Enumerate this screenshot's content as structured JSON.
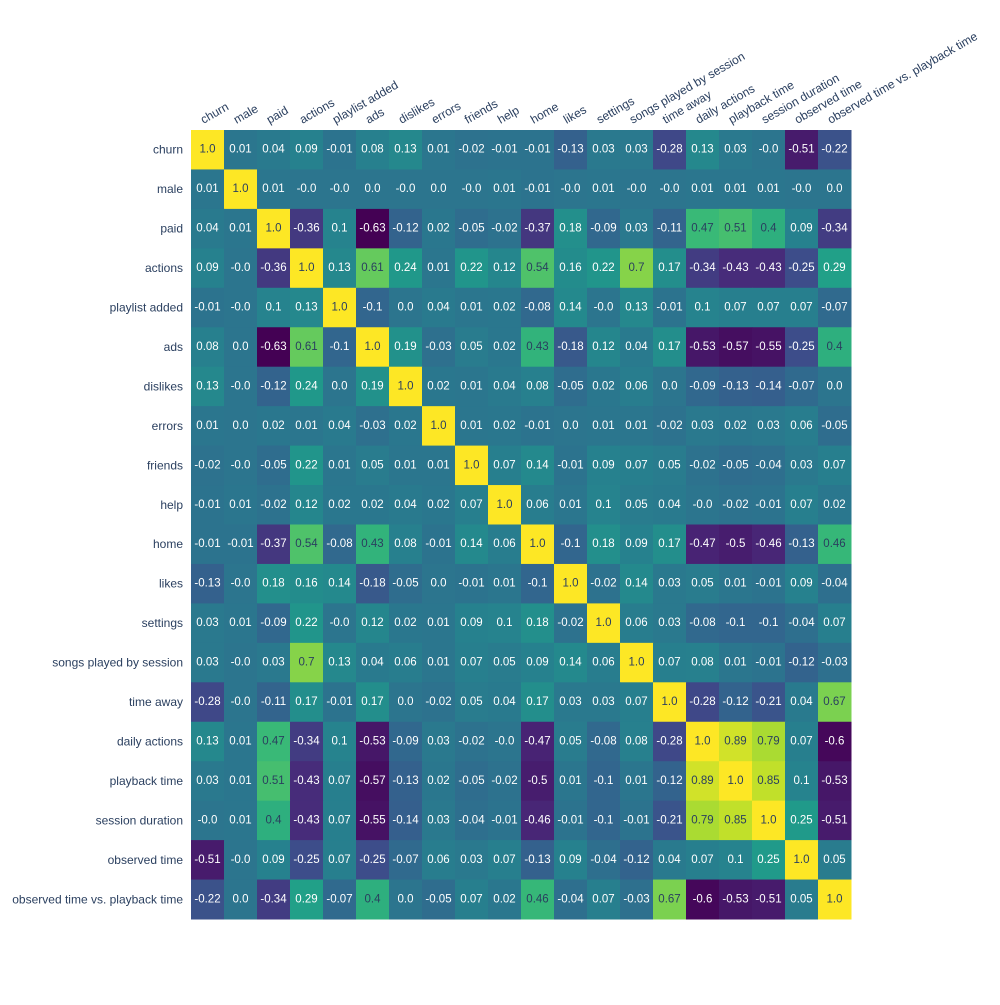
{
  "chart_data": {
    "type": "heatmap",
    "title": "",
    "xlabel": "",
    "ylabel": "",
    "colorscale": "viridis",
    "zmin": -0.63,
    "zmax": 1.0,
    "show_colorbar": false,
    "x_axis_side": "top",
    "categories": [
      "churn",
      "male",
      "paid",
      "actions",
      "playlist added",
      "ads",
      "dislikes",
      "errors",
      "friends",
      "help",
      "home",
      "likes",
      "settings",
      "songs played by session",
      "time away",
      "daily actions",
      "playback time",
      "session duration",
      "observed time",
      "observed time vs. playback time"
    ],
    "values": [
      [
        1.0,
        0.01,
        0.04,
        0.09,
        -0.01,
        0.08,
        0.13,
        0.01,
        -0.02,
        -0.01,
        -0.01,
        -0.13,
        0.03,
        0.03,
        -0.28,
        0.13,
        0.03,
        -0.0,
        -0.51,
        -0.22
      ],
      [
        0.01,
        1.0,
        0.01,
        -0.0,
        -0.0,
        0.0,
        -0.0,
        0.0,
        -0.0,
        0.01,
        -0.01,
        -0.0,
        0.01,
        -0.0,
        -0.0,
        0.01,
        0.01,
        0.01,
        -0.0,
        0.0
      ],
      [
        0.04,
        0.01,
        1.0,
        -0.36,
        0.1,
        -0.63,
        -0.12,
        0.02,
        -0.05,
        -0.02,
        -0.37,
        0.18,
        -0.09,
        0.03,
        -0.11,
        0.47,
        0.51,
        0.4,
        0.09,
        -0.34
      ],
      [
        0.09,
        -0.0,
        -0.36,
        1.0,
        0.13,
        0.61,
        0.24,
        0.01,
        0.22,
        0.12,
        0.54,
        0.16,
        0.22,
        0.7,
        0.17,
        -0.34,
        -0.43,
        -0.43,
        -0.25,
        0.29
      ],
      [
        -0.01,
        -0.0,
        0.1,
        0.13,
        1.0,
        -0.1,
        0.0,
        0.04,
        0.01,
        0.02,
        -0.08,
        0.14,
        -0.0,
        0.13,
        -0.01,
        0.1,
        0.07,
        0.07,
        0.07,
        -0.07
      ],
      [
        0.08,
        0.0,
        -0.63,
        0.61,
        -0.1,
        1.0,
        0.19,
        -0.03,
        0.05,
        0.02,
        0.43,
        -0.18,
        0.12,
        0.04,
        0.17,
        -0.53,
        -0.57,
        -0.55,
        -0.25,
        0.4
      ],
      [
        0.13,
        -0.0,
        -0.12,
        0.24,
        0.0,
        0.19,
        1.0,
        0.02,
        0.01,
        0.04,
        0.08,
        -0.05,
        0.02,
        0.06,
        0.0,
        -0.09,
        -0.13,
        -0.14,
        -0.07,
        0.0
      ],
      [
        0.01,
        0.0,
        0.02,
        0.01,
        0.04,
        -0.03,
        0.02,
        1.0,
        0.01,
        0.02,
        -0.01,
        0.0,
        0.01,
        0.01,
        -0.02,
        0.03,
        0.02,
        0.03,
        0.06,
        -0.05
      ],
      [
        -0.02,
        -0.0,
        -0.05,
        0.22,
        0.01,
        0.05,
        0.01,
        0.01,
        1.0,
        0.07,
        0.14,
        -0.01,
        0.09,
        0.07,
        0.05,
        -0.02,
        -0.05,
        -0.04,
        0.03,
        0.07
      ],
      [
        -0.01,
        0.01,
        -0.02,
        0.12,
        0.02,
        0.02,
        0.04,
        0.02,
        0.07,
        1.0,
        0.06,
        0.01,
        0.1,
        0.05,
        0.04,
        -0.0,
        -0.02,
        -0.01,
        0.07,
        0.02
      ],
      [
        -0.01,
        -0.01,
        -0.37,
        0.54,
        -0.08,
        0.43,
        0.08,
        -0.01,
        0.14,
        0.06,
        1.0,
        -0.1,
        0.18,
        0.09,
        0.17,
        -0.47,
        -0.5,
        -0.46,
        -0.13,
        0.46
      ],
      [
        -0.13,
        -0.0,
        0.18,
        0.16,
        0.14,
        -0.18,
        -0.05,
        0.0,
        -0.01,
        0.01,
        -0.1,
        1.0,
        -0.02,
        0.14,
        0.03,
        0.05,
        0.01,
        -0.01,
        0.09,
        -0.04
      ],
      [
        0.03,
        0.01,
        -0.09,
        0.22,
        -0.0,
        0.12,
        0.02,
        0.01,
        0.09,
        0.1,
        0.18,
        -0.02,
        1.0,
        0.06,
        0.03,
        -0.08,
        -0.1,
        -0.1,
        -0.04,
        0.07
      ],
      [
        0.03,
        -0.0,
        0.03,
        0.7,
        0.13,
        0.04,
        0.06,
        0.01,
        0.07,
        0.05,
        0.09,
        0.14,
        0.06,
        1.0,
        0.07,
        0.08,
        0.01,
        -0.01,
        -0.12,
        -0.03
      ],
      [
        -0.28,
        -0.0,
        -0.11,
        0.17,
        -0.01,
        0.17,
        0.0,
        -0.02,
        0.05,
        0.04,
        0.17,
        0.03,
        0.03,
        0.07,
        1.0,
        -0.28,
        -0.12,
        -0.21,
        0.04,
        0.67
      ],
      [
        0.13,
        0.01,
        0.47,
        -0.34,
        0.1,
        -0.53,
        -0.09,
        0.03,
        -0.02,
        -0.0,
        -0.47,
        0.05,
        -0.08,
        0.08,
        -0.28,
        1.0,
        0.89,
        0.79,
        0.07,
        -0.6
      ],
      [
        0.03,
        0.01,
        0.51,
        -0.43,
        0.07,
        -0.57,
        -0.13,
        0.02,
        -0.05,
        -0.02,
        -0.5,
        0.01,
        -0.1,
        0.01,
        -0.12,
        0.89,
        1.0,
        0.85,
        0.1,
        -0.53
      ],
      [
        -0.0,
        0.01,
        0.4,
        -0.43,
        0.07,
        -0.55,
        -0.14,
        0.03,
        -0.04,
        -0.01,
        -0.46,
        -0.01,
        -0.1,
        -0.01,
        -0.21,
        0.79,
        0.85,
        1.0,
        0.25,
        -0.51
      ],
      [
        -0.51,
        -0.0,
        0.09,
        -0.25,
        0.07,
        -0.25,
        -0.07,
        0.06,
        0.03,
        0.07,
        -0.13,
        0.09,
        -0.04,
        -0.12,
        0.04,
        0.07,
        0.1,
        0.25,
        1.0,
        0.05
      ],
      [
        -0.22,
        0.0,
        -0.34,
        0.29,
        -0.07,
        0.4,
        0.0,
        -0.05,
        0.07,
        0.02,
        0.46,
        -0.04,
        0.07,
        -0.03,
        0.67,
        -0.6,
        -0.53,
        -0.51,
        0.05,
        1.0
      ]
    ],
    "colors": {
      "label_text": "#2a3f5f",
      "cell_text_dark": "#2a3f5f",
      "cell_text_light": "#ffffff",
      "background": "#ffffff"
    }
  }
}
